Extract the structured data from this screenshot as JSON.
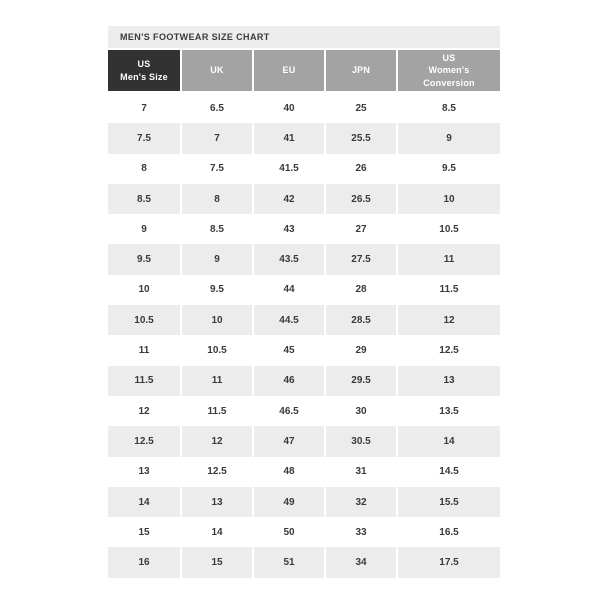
{
  "chart_data": {
    "type": "table",
    "title": "MEN'S FOOTWEAR SIZE CHART",
    "columns": [
      "US Men's Size",
      "UK",
      "EU",
      "JPN",
      "US Women's Conversion"
    ],
    "column_labels": [
      "US\nMen's Size",
      "UK",
      "EU",
      "JPN",
      "US\nWomen's\nConversion"
    ],
    "rows": [
      [
        "7",
        "6.5",
        "40",
        "25",
        "8.5"
      ],
      [
        "7.5",
        "7",
        "41",
        "25.5",
        "9"
      ],
      [
        "8",
        "7.5",
        "41.5",
        "26",
        "9.5"
      ],
      [
        "8.5",
        "8",
        "42",
        "26.5",
        "10"
      ],
      [
        "9",
        "8.5",
        "43",
        "27",
        "10.5"
      ],
      [
        "9.5",
        "9",
        "43.5",
        "27.5",
        "11"
      ],
      [
        "10",
        "9.5",
        "44",
        "28",
        "11.5"
      ],
      [
        "10.5",
        "10",
        "44.5",
        "28.5",
        "12"
      ],
      [
        "11",
        "10.5",
        "45",
        "29",
        "12.5"
      ],
      [
        "11.5",
        "11",
        "46",
        "29.5",
        "13"
      ],
      [
        "12",
        "11.5",
        "46.5",
        "30",
        "13.5"
      ],
      [
        "12.5",
        "12",
        "47",
        "30.5",
        "14"
      ],
      [
        "13",
        "12.5",
        "48",
        "31",
        "14.5"
      ],
      [
        "14",
        "13",
        "49",
        "32",
        "15.5"
      ],
      [
        "15",
        "14",
        "50",
        "33",
        "16.5"
      ],
      [
        "16",
        "15",
        "51",
        "34",
        "17.5"
      ]
    ],
    "layout_hints": {
      "striped": true,
      "stripe_starts_on_row": 2,
      "header_first_column_emphasized": true
    }
  },
  "colors": {
    "title_bar_bg": "#ececec",
    "header_primary_bg": "#323232",
    "header_bg": "#a3a3a3",
    "header_text": "#ffffff",
    "row_stripe_bg": "#ececec",
    "body_text": "#3a3a3a",
    "page_bg": "#ffffff"
  }
}
